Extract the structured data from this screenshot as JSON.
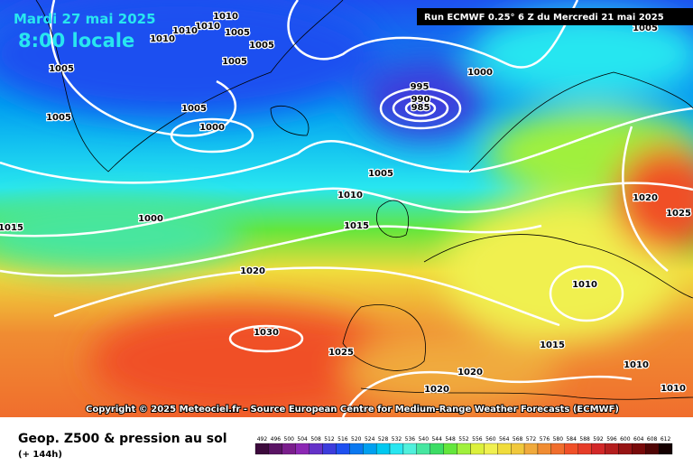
{
  "header": {
    "date": "Mardi 27 mai 2025",
    "time": "8:00 locale",
    "run": "Run ECMWF 0.25° 6 Z du Mercredi 21 mai 2025"
  },
  "copyright": "Copyright © 2025 Meteociel.fr - Source European Centre for Medium-Range Weather Forecasts (ECMWF)",
  "footer": {
    "title": "Geop. Z500 & pression au sol",
    "lead": "(+ 144h)"
  },
  "isobar_labels": [
    "1010",
    "1010",
    "1010",
    "1010",
    "1005",
    "1005",
    "1005",
    "1005",
    "1005",
    "1005",
    "1000",
    "995",
    "990",
    "985",
    "1000",
    "1005",
    "1010",
    "1015",
    "1000",
    "1015",
    "1020",
    "1030",
    "1025",
    "1020",
    "1020",
    "1020",
    "1025",
    "1010",
    "1015",
    "1010",
    "1010",
    "1005"
  ],
  "colorbar": {
    "labels": [
      492,
      496,
      500,
      504,
      508,
      512,
      516,
      520,
      524,
      528,
      532,
      536,
      540,
      544,
      548,
      552,
      556,
      560,
      564,
      568,
      572,
      576,
      580,
      584,
      588,
      592,
      596,
      600,
      604,
      608,
      612
    ],
    "colors": [
      "#3c0a3c",
      "#5a1464",
      "#7a1e8c",
      "#8c28b4",
      "#6432c8",
      "#3c3cdc",
      "#1e50f0",
      "#0a78f0",
      "#00a0f0",
      "#00c8f0",
      "#28e6f0",
      "#50f0dc",
      "#46e6a0",
      "#3cdc64",
      "#64e63c",
      "#a0f03c",
      "#dcf03c",
      "#f0f050",
      "#f0dc3c",
      "#f0c83c",
      "#f0aa3c",
      "#f08c32",
      "#f06e2d",
      "#f05028",
      "#e63c28",
      "#d22828",
      "#b41e1e",
      "#961414",
      "#780a0a",
      "#500505",
      "#140000"
    ]
  }
}
